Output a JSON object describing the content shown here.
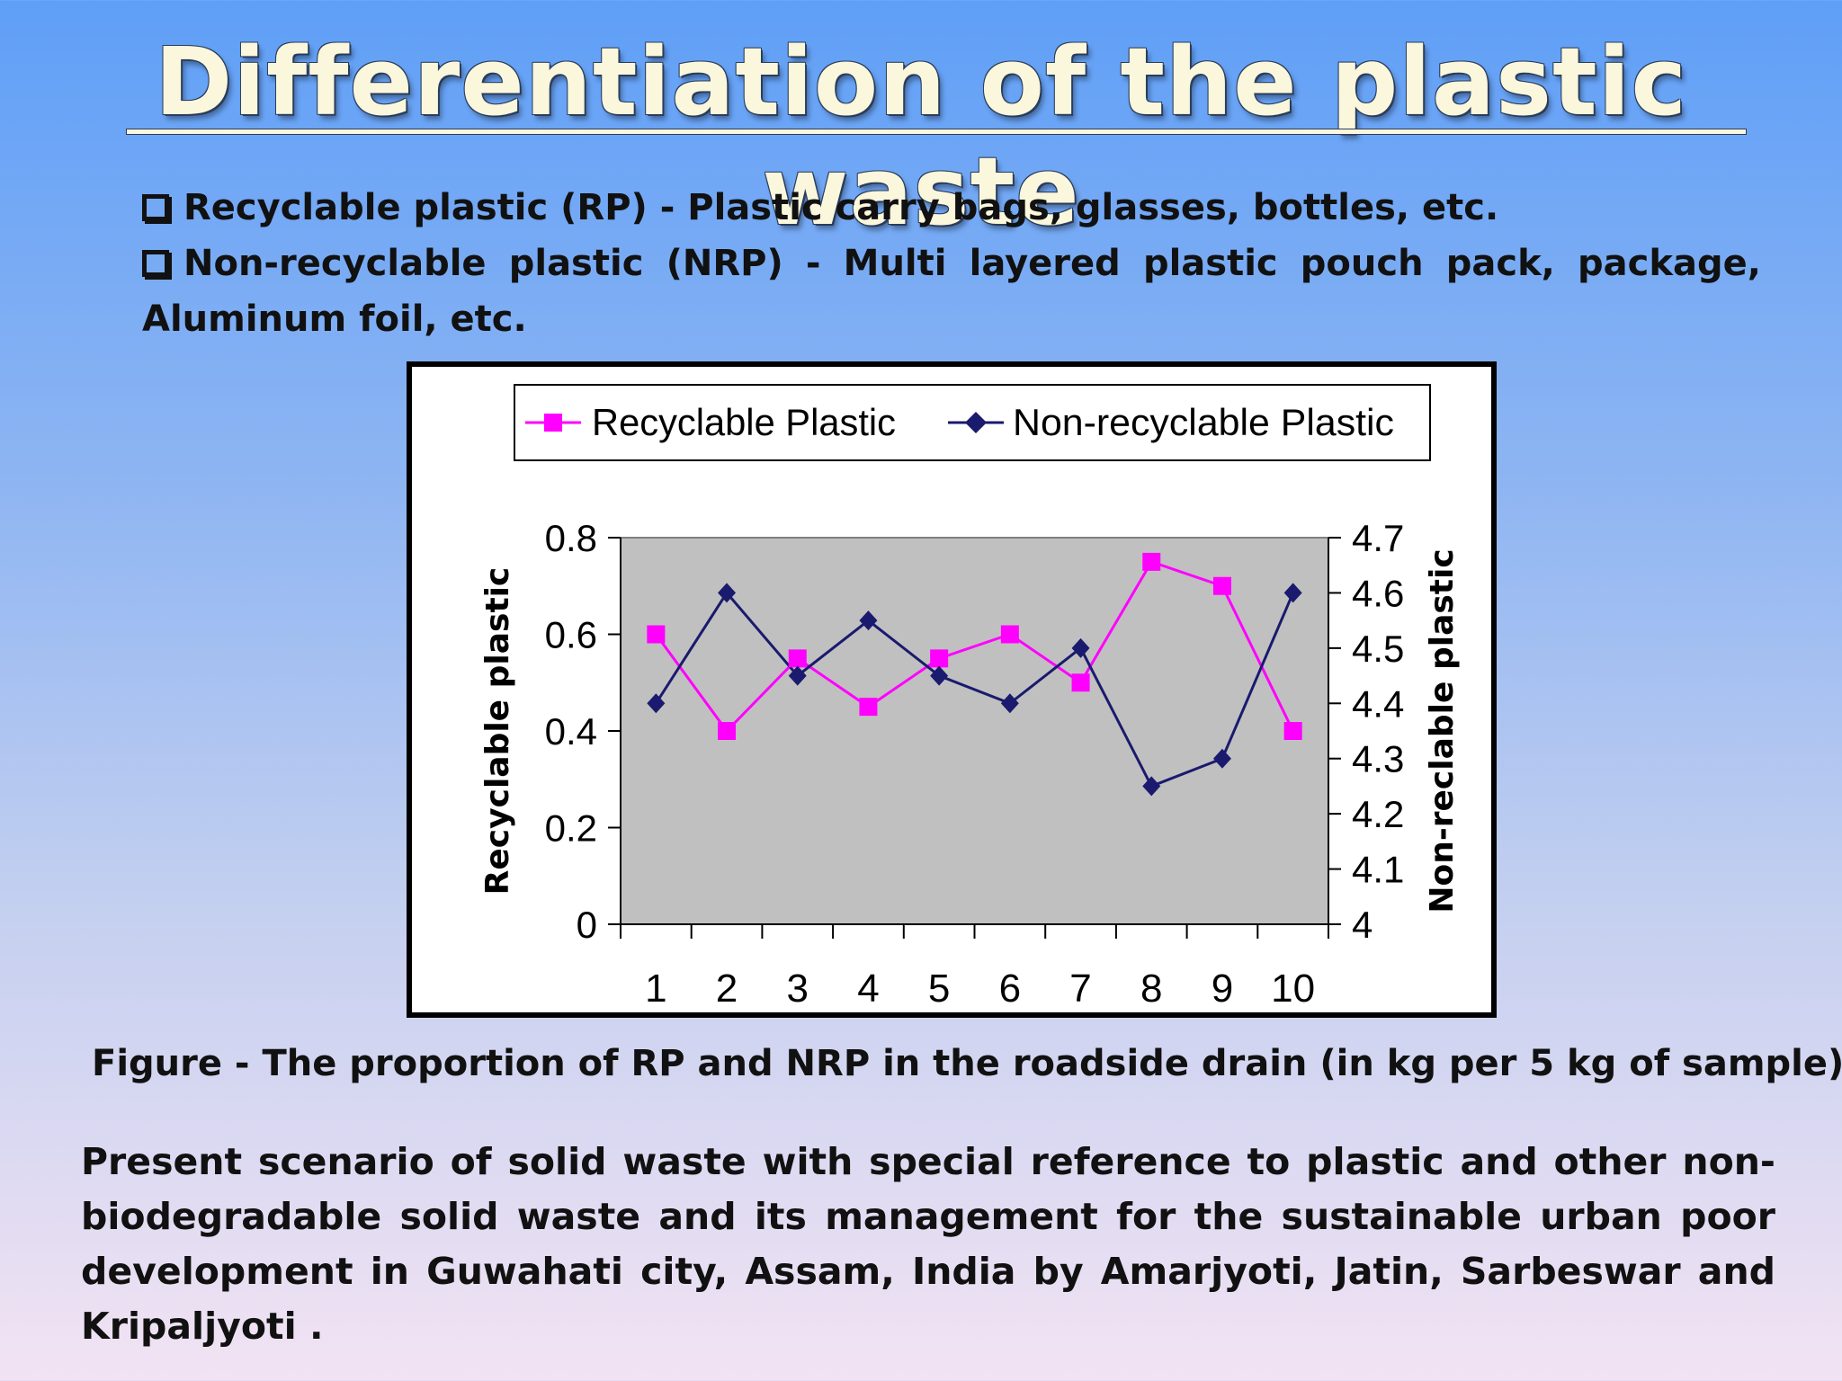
{
  "title": "Differentiation of the plastic waste",
  "bullets": [
    {
      "text": "Recyclable plastic (RP) - Plastic carry bags, glasses, bottles, etc."
    },
    {
      "line1": "Non-recyclable plastic (NRP) - Multi layered plastic pouch pack, package,",
      "line2": "Aluminum foil, etc."
    }
  ],
  "caption": "Figure - The proportion of RP and NRP in the roadside drain (in kg per 5 kg of sample)",
  "citation": {
    "lines": [
      "Present scenario of solid waste with special reference to plastic and other non-",
      "biodegradable solid waste and its management for the sustainable urban poor",
      "development in Guwahati city, Assam, India by Amarjyoti, Jatin, Sarbeswar and",
      "Kripaljyoti ."
    ]
  },
  "chart_data": {
    "type": "line",
    "x": [
      1,
      2,
      3,
      4,
      5,
      6,
      7,
      8,
      9,
      10
    ],
    "series": [
      {
        "name": "Recyclable Plastic",
        "axis": "left",
        "color": "#ff00ff",
        "marker": "square",
        "values": [
          0.6,
          0.4,
          0.55,
          0.45,
          0.55,
          0.6,
          0.5,
          0.75,
          0.7,
          0.4
        ]
      },
      {
        "name": "Non-recyclable Plastic",
        "axis": "right",
        "color": "#1a1a6e",
        "marker": "diamond",
        "values": [
          4.4,
          4.6,
          4.45,
          4.55,
          4.45,
          4.4,
          4.5,
          4.25,
          4.3,
          4.6
        ]
      }
    ],
    "ylabel": "Recyclable plastic",
    "y2label": "Non-reclable plastic",
    "ylim": [
      0,
      0.8
    ],
    "y2lim": [
      4,
      4.7
    ],
    "yticks": [
      "0",
      "0.2",
      "0.4",
      "0.6",
      "0.8"
    ],
    "y2ticks": [
      "4",
      "4.1",
      "4.2",
      "4.3",
      "4.4",
      "4.5",
      "4.6",
      "4.7"
    ],
    "xticks": [
      "1",
      "2",
      "3",
      "4",
      "5",
      "6",
      "7",
      "8",
      "9",
      "10"
    ],
    "grid": false,
    "legend": "top",
    "plot_bg": "#c0c0c0"
  }
}
